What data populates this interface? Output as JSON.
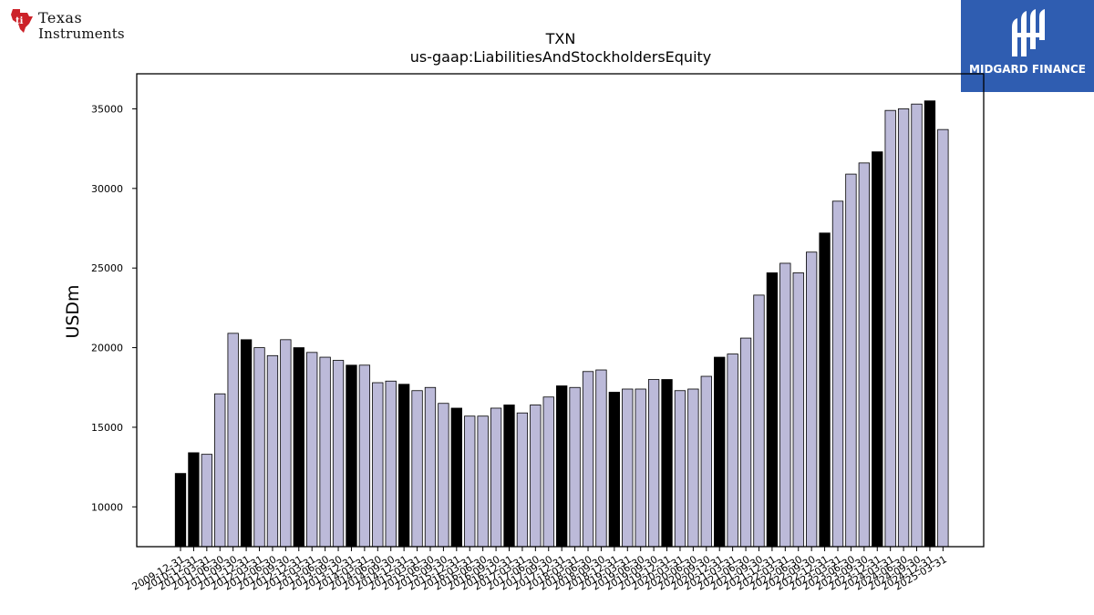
{
  "logos": {
    "company_line1": "Texas",
    "company_line2": "Instruments",
    "brand_name": "MIDGARD FINANCE",
    "brand_color": "#2f5db1",
    "ti_red": "#cc2229"
  },
  "colors": {
    "annual_bar": "#000000",
    "quarter_bar": "#bcbad9",
    "bar_edge": "#000000"
  },
  "chart_data": {
    "type": "bar",
    "title": "TXN",
    "subtitle": "us-gaap:LiabilitiesAndStockholdersEquity",
    "ylabel": "USDm",
    "xlabel": "",
    "ylim": [
      7500,
      37200
    ],
    "yticks": [
      10000,
      15000,
      20000,
      25000,
      30000,
      35000
    ],
    "grid": false,
    "categories": [
      "2009-12-31",
      "2010-12-31",
      "2011-03-31",
      "2011-06-30",
      "2011-09-30",
      "2011-12-31",
      "2012-03-31",
      "2012-06-30",
      "2012-09-30",
      "2012-12-31",
      "2013-03-31",
      "2013-06-30",
      "2013-09-30",
      "2013-12-31",
      "2014-03-31",
      "2014-06-30",
      "2014-09-30",
      "2014-12-31",
      "2015-03-31",
      "2015-06-30",
      "2015-09-30",
      "2015-12-31",
      "2016-03-31",
      "2016-06-30",
      "2016-09-30",
      "2016-12-31",
      "2017-03-31",
      "2017-06-30",
      "2017-09-30",
      "2017-12-31",
      "2018-03-31",
      "2018-06-30",
      "2018-09-30",
      "2018-12-31",
      "2019-03-31",
      "2019-06-30",
      "2019-09-30",
      "2019-12-31",
      "2020-03-31",
      "2020-06-30",
      "2020-09-30",
      "2020-12-31",
      "2021-03-31",
      "2021-06-30",
      "2021-09-30",
      "2021-12-31",
      "2022-03-31",
      "2022-06-30",
      "2022-09-30",
      "2022-12-31",
      "2023-03-31",
      "2023-06-30",
      "2023-09-30",
      "2023-12-31",
      "2024-03-31",
      "2024-06-30",
      "2024-09-30",
      "2024-12-31",
      "2025-03-31"
    ],
    "values": [
      12100,
      13400,
      13300,
      17100,
      20900,
      20500,
      20000,
      19500,
      20500,
      20000,
      19700,
      19400,
      19200,
      18900,
      18900,
      17800,
      17900,
      17700,
      17300,
      17500,
      16500,
      16200,
      15700,
      15700,
      16200,
      16400,
      15900,
      16400,
      16900,
      17600,
      17500,
      18500,
      18600,
      17200,
      17400,
      17400,
      18000,
      18000,
      17300,
      17400,
      18200,
      19400,
      19600,
      20600,
      23300,
      24700,
      25300,
      24700,
      26000,
      27200,
      29200,
      30900,
      31600,
      32300,
      34900,
      35000,
      35300,
      35500,
      33700
    ],
    "bar_kind": [
      "annual",
      "annual",
      "quarter",
      "quarter",
      "quarter",
      "annual",
      "quarter",
      "quarter",
      "quarter",
      "annual",
      "quarter",
      "quarter",
      "quarter",
      "annual",
      "quarter",
      "quarter",
      "quarter",
      "annual",
      "quarter",
      "quarter",
      "quarter",
      "annual",
      "quarter",
      "quarter",
      "quarter",
      "annual",
      "quarter",
      "quarter",
      "quarter",
      "annual",
      "quarter",
      "quarter",
      "quarter",
      "annual",
      "quarter",
      "quarter",
      "quarter",
      "annual",
      "quarter",
      "quarter",
      "quarter",
      "annual",
      "quarter",
      "quarter",
      "quarter",
      "annual",
      "quarter",
      "quarter",
      "quarter",
      "annual",
      "quarter",
      "quarter",
      "quarter",
      "annual",
      "quarter",
      "quarter",
      "quarter",
      "annual",
      "quarter"
    ]
  }
}
